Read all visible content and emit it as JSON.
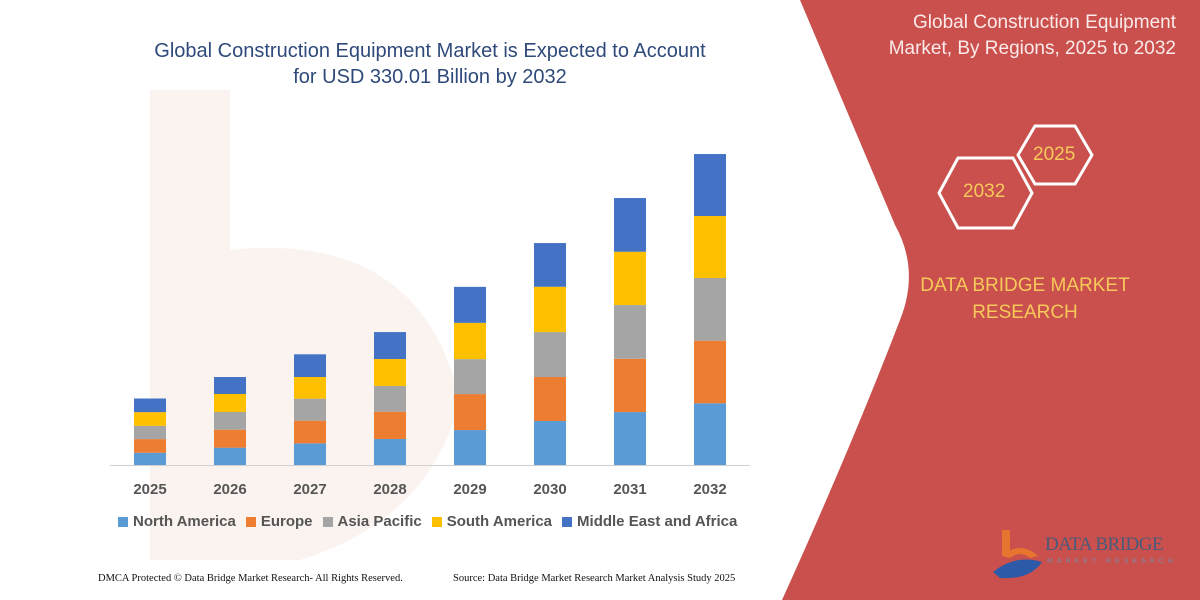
{
  "header": {
    "title_line1": "Global Construction Equipment Market is Expected to Account",
    "title_line2": "for USD 330.01 Billion by 2032"
  },
  "side_panel": {
    "title_line1": "Global Construction Equipment",
    "title_line2": "Market, By Regions, 2025 to 2032",
    "hex_2025": "2025",
    "hex_2032": "2032",
    "brand_line1": "DATA BRIDGE MARKET",
    "brand_line2": "RESEARCH",
    "logo_text": "DATA BRIDGE",
    "logo_sub": "MARKET RESEARCH",
    "panel_color": "#c9504c",
    "accent_text_color": "#f7c95a"
  },
  "footer": {
    "left": "DMCA Protected © Data Bridge Market Research-  All Rights Reserved.",
    "right": "Source: Data Bridge Market Research  Market Analysis Study 2025"
  },
  "chart_data": {
    "type": "bar",
    "stacked": true,
    "title": "Global Construction Equipment Market is Expected to Account for USD 330.01 Billion by 2032",
    "categories": [
      "2025",
      "2026",
      "2027",
      "2028",
      "2029",
      "2030",
      "2031",
      "2032"
    ],
    "ylim": [
      0,
      345
    ],
    "y_axis_shown": false,
    "grid": false,
    "legend_position": "bottom",
    "series": [
      {
        "name": "North America",
        "color": "#5b9bd5",
        "values": [
          13.0,
          18.4,
          23.0,
          27.6,
          37.1,
          46.7,
          56.2,
          65.5
        ]
      },
      {
        "name": "Europe",
        "color": "#ed7d31",
        "values": [
          14.5,
          19.1,
          24.1,
          29.0,
          38.2,
          46.7,
          56.6,
          66.5
        ]
      },
      {
        "name": "Asia Pacific",
        "color": "#a5a5a5",
        "values": [
          14.1,
          18.8,
          23.3,
          27.3,
          37.1,
          47.7,
          57.0,
          66.5
        ]
      },
      {
        "name": "South America",
        "color": "#ffc000",
        "values": [
          14.5,
          19.1,
          23.0,
          28.6,
          38.5,
          48.1,
          56.6,
          65.8
        ]
      },
      {
        "name": "Middle East and Africa",
        "color": "#4472c4",
        "values": [
          14.5,
          18.0,
          24.1,
          28.6,
          38.2,
          46.4,
          57.0,
          65.8
        ]
      }
    ]
  }
}
